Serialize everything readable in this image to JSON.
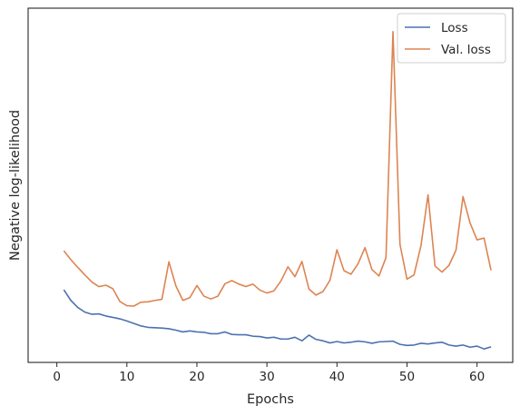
{
  "chart_data": {
    "type": "line",
    "title": "",
    "xlabel": "Epochs",
    "ylabel": "Negative log-likelihood",
    "xlim": [
      -4.1,
      65.1
    ],
    "ylim": [
      0,
      100
    ],
    "xticks": [
      0,
      10,
      20,
      30,
      40,
      50,
      60
    ],
    "yticks": [],
    "grid": false,
    "legend": "top-right",
    "x": [
      1,
      2,
      3,
      4,
      5,
      6,
      7,
      8,
      9,
      10,
      11,
      12,
      13,
      14,
      15,
      16,
      17,
      18,
      19,
      20,
      21,
      22,
      23,
      24,
      25,
      26,
      27,
      28,
      29,
      30,
      31,
      32,
      33,
      34,
      35,
      36,
      37,
      38,
      39,
      40,
      41,
      42,
      43,
      44,
      45,
      46,
      47,
      48,
      49,
      50,
      51,
      52,
      53,
      54,
      55,
      56,
      57,
      58,
      59,
      60,
      61,
      62
    ],
    "series": [
      {
        "name": "Loss",
        "color": "#4c72b0",
        "values": [
          20.5,
          17.5,
          15.5,
          14.2,
          13.6,
          13.7,
          13.1,
          12.7,
          12.3,
          11.7,
          11.0,
          10.3,
          9.9,
          9.8,
          9.7,
          9.5,
          9.1,
          8.6,
          8.9,
          8.6,
          8.5,
          8.1,
          8.1,
          8.6,
          7.9,
          7.8,
          7.8,
          7.4,
          7.3,
          6.9,
          7.1,
          6.6,
          6.6,
          7.1,
          6.1,
          7.7,
          6.5,
          6.1,
          5.5,
          5.9,
          5.5,
          5.7,
          6.0,
          5.8,
          5.4,
          5.8,
          5.9,
          6.0,
          5.1,
          4.8,
          4.9,
          5.4,
          5.2,
          5.5,
          5.7,
          4.9,
          4.6,
          4.9,
          4.3,
          4.6,
          3.8,
          4.4
        ]
      },
      {
        "name": "Val. loss",
        "color": "#dd8452",
        "values": [
          31.5,
          29.0,
          26.8,
          24.7,
          22.7,
          21.4,
          21.8,
          20.8,
          17.2,
          16.0,
          15.9,
          17.0,
          17.1,
          17.5,
          17.8,
          28.4,
          21.6,
          17.5,
          18.3,
          21.7,
          18.7,
          17.9,
          18.7,
          22.2,
          23.1,
          22.1,
          21.4,
          22.1,
          20.4,
          19.6,
          20.2,
          23.0,
          27.0,
          24.2,
          28.5,
          20.7,
          19.0,
          20.0,
          23.2,
          31.8,
          25.9,
          24.9,
          27.8,
          32.4,
          26.2,
          24.4,
          29.6,
          93.4,
          33.3,
          23.5,
          24.7,
          33.0,
          47.3,
          27.2,
          25.5,
          27.4,
          31.7,
          46.8,
          39.4,
          34.6,
          35.1,
          26.0
        ]
      }
    ]
  }
}
